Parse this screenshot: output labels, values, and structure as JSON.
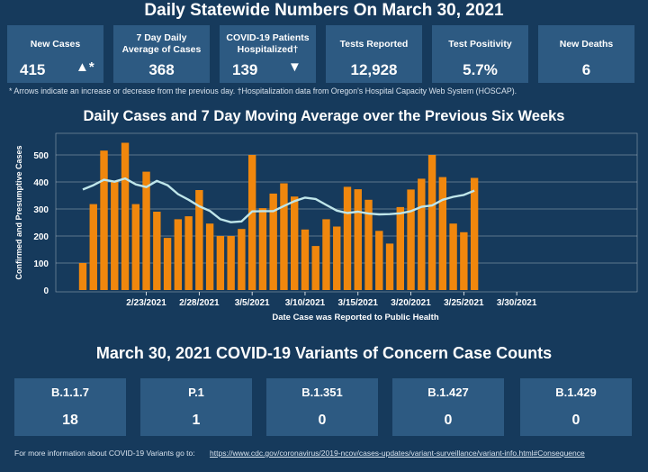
{
  "header": {
    "title": "Daily Statewide Numbers On March 30, 2021"
  },
  "tiles": [
    {
      "label": "New Cases",
      "value": "415",
      "trend": "up",
      "trend_mark": "▲*"
    },
    {
      "label": "7 Day Daily Average of Cases",
      "value": "368"
    },
    {
      "label": "COVID-19 Patients Hospitalized†",
      "value": "139",
      "trend": "down",
      "trend_mark": "▼"
    },
    {
      "label": "Tests Reported",
      "value": "12,928"
    },
    {
      "label": "Test Positivity",
      "value": "5.7%"
    },
    {
      "label": "New Deaths",
      "value": "6"
    }
  ],
  "footnote": "* Arrows indicate an increase or decrease from the previous day. †Hospitalization data from Oregon's Hospital Capacity Web System (HOSCAP).",
  "chart_title": "Daily Cases and 7 Day Moving Average over the Previous Six Weeks",
  "chart_data": {
    "type": "bar",
    "title": "Daily Cases and 7 Day Moving Average over the Previous Six Weeks",
    "xlabel": "Date Case was Reported to Public Health",
    "ylabel": "Confirmed and Presumptive Cases",
    "ylim": [
      0,
      570
    ],
    "yticks": [
      0,
      100,
      200,
      300,
      400,
      500
    ],
    "x_start": "2021-02-17",
    "xtick_labels": [
      "2/23/2021",
      "2/28/2021",
      "3/5/2021",
      "3/10/2021",
      "3/15/2021",
      "3/20/2021",
      "3/25/2021",
      "3/30/2021"
    ],
    "xtick_dates": [
      "2021-02-23",
      "2021-02-28",
      "2021-03-05",
      "2021-03-10",
      "2021-03-15",
      "2021-03-20",
      "2021-03-25",
      "2021-03-30"
    ],
    "grid": true,
    "colors": {
      "bars": "#f0870d",
      "line": "#bfe6ea",
      "background": "#163a5c",
      "grid": "#ffffff"
    },
    "series": [
      {
        "type": "bar",
        "values": [
          100,
          318,
          516,
          402,
          545,
          318,
          438,
          290,
          193,
          262,
          273,
          370,
          246,
          200,
          200,
          226,
          500,
          303,
          357,
          395,
          346,
          224,
          163,
          262,
          235,
          382,
          373,
          334,
          219,
          172,
          307,
          372,
          412,
          500,
          418,
          246,
          214,
          415
        ]
      },
      {
        "type": "line",
        "values": [
          372,
          388,
          408,
          401,
          413,
          391,
          381,
          404,
          388,
          355,
          334,
          310,
          293,
          262,
          251,
          254,
          291,
          292,
          292,
          311,
          329,
          342,
          337,
          315,
          294,
          285,
          290,
          283,
          280,
          281,
          284,
          292,
          308,
          313,
          334,
          345,
          352,
          368
        ]
      }
    ]
  },
  "variants": {
    "title": "March 30, 2021 COVID-19 Variants of Concern Case Counts",
    "items": [
      {
        "name": "B.1.1.7",
        "count": "18"
      },
      {
        "name": "P.1",
        "count": "1"
      },
      {
        "name": "B.1.351",
        "count": "0"
      },
      {
        "name": "B.1.427",
        "count": "0"
      },
      {
        "name": "B.1.429",
        "count": "0"
      }
    ]
  },
  "more_info": {
    "text": "For more information about COVID-19 Variants go to:",
    "link": "https://www.cdc.gov/coronavirus/2019-ncov/cases-updates/variant-surveillance/variant-info.html#Consequence"
  }
}
